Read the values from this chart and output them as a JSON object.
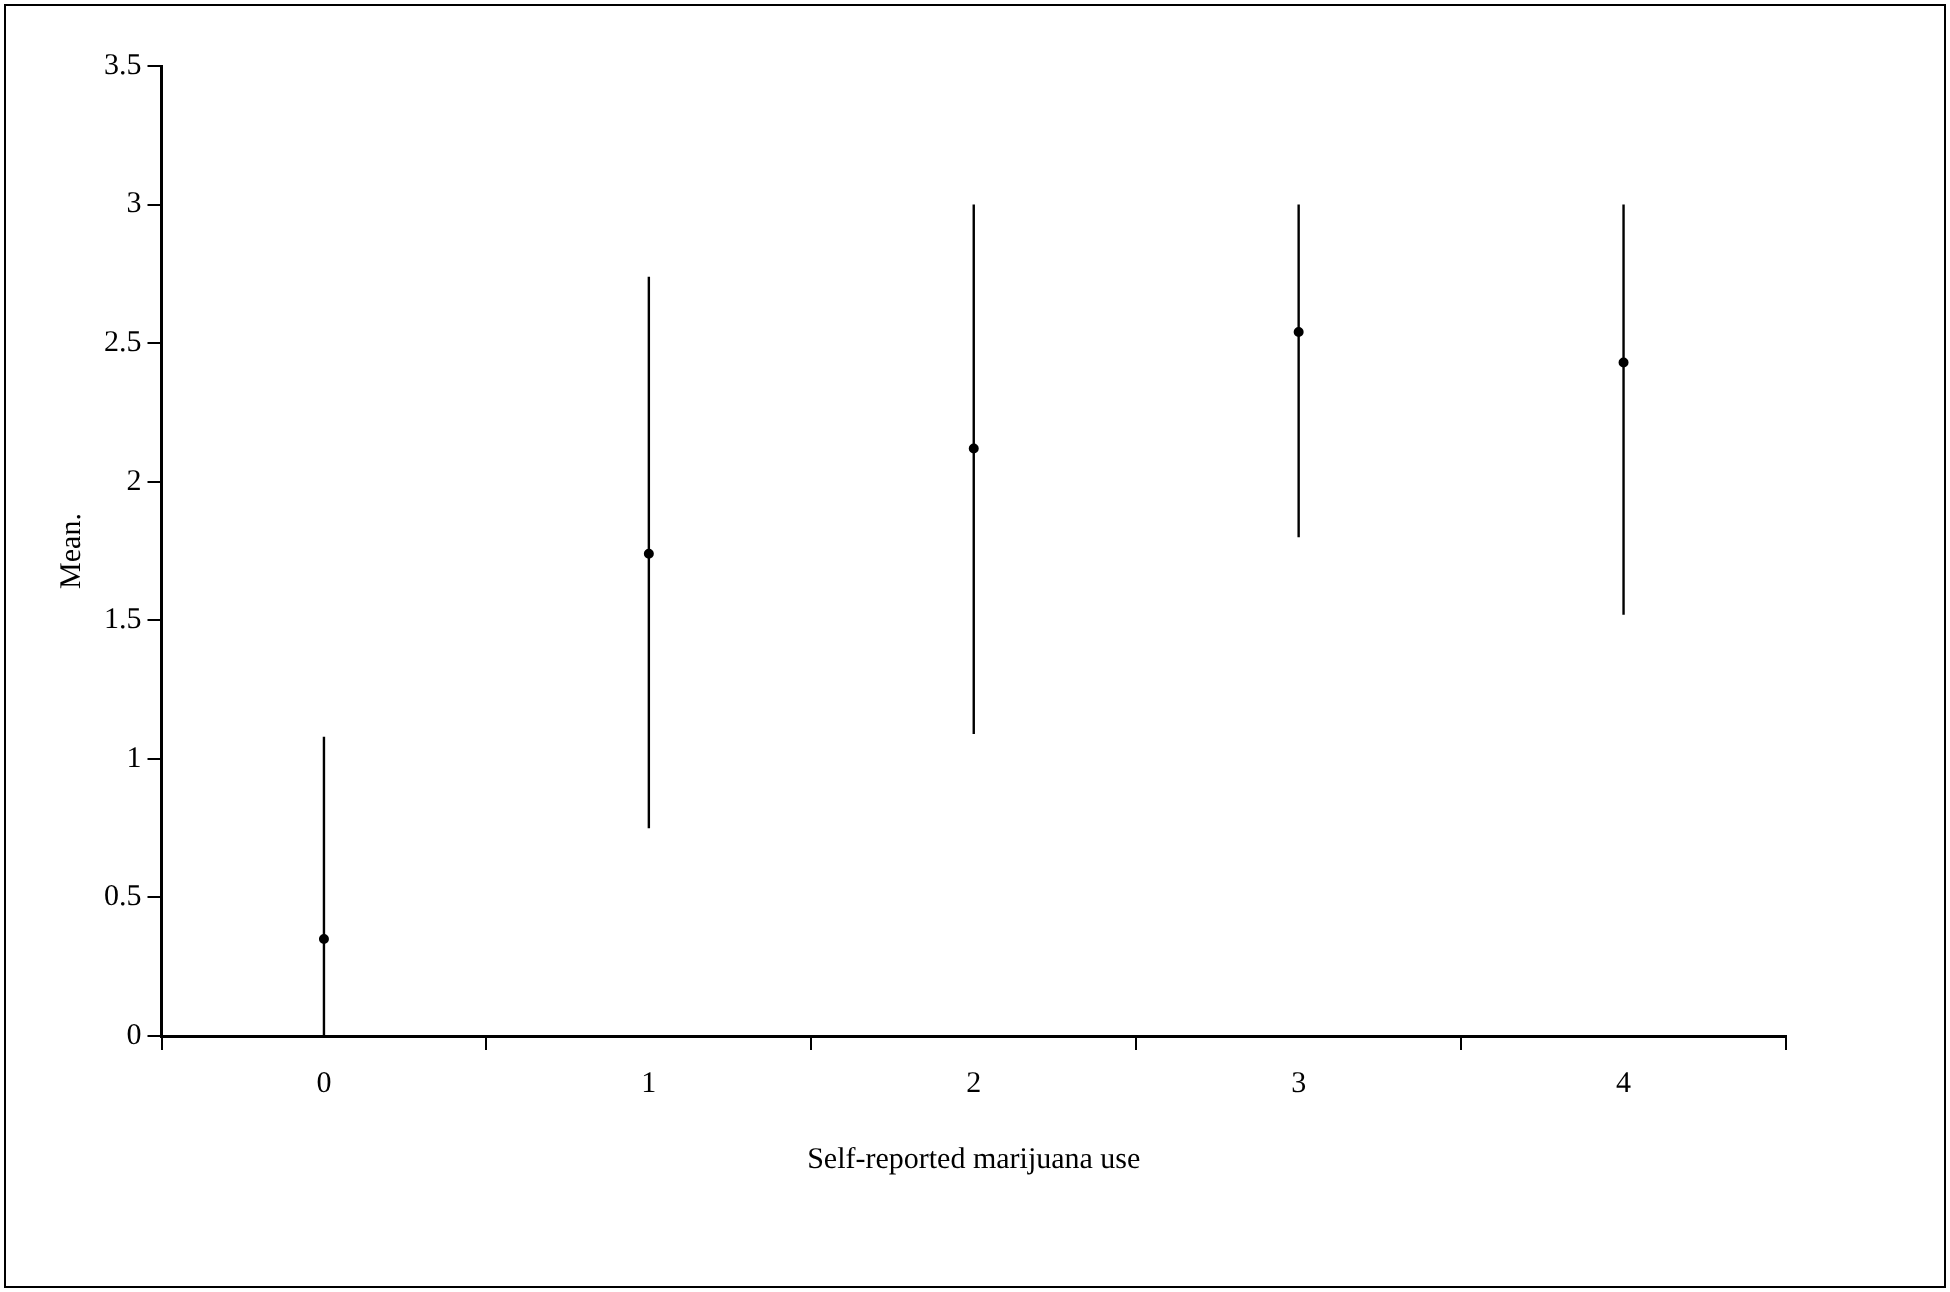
{
  "chart_data": {
    "type": "scatter",
    "xlabel": "Self-reported marijuana use",
    "ylabel": "Mean.",
    "categories": [
      "0",
      "1",
      "2",
      "3",
      "4"
    ],
    "values": [
      0.35,
      1.74,
      2.12,
      2.54,
      2.43
    ],
    "errors": [
      [
        0,
        1.08
      ],
      [
        0.75,
        2.74
      ],
      [
        1.09,
        3.0
      ],
      [
        1.8,
        3.0
      ],
      [
        1.52,
        3.0
      ]
    ],
    "color": "#000000",
    "marker": "circle",
    "grid": false,
    "legend": false,
    "ylim": [
      0,
      3.5
    ],
    "yticks": [
      0,
      0.5,
      1,
      1.5,
      2,
      2.5,
      3,
      3.5
    ]
  }
}
